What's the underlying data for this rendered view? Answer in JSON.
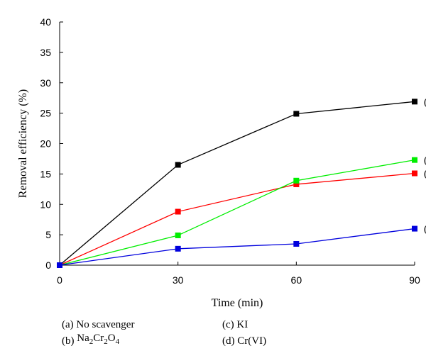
{
  "chart_data": {
    "type": "line",
    "title": "",
    "xlabel": "Time (min)",
    "ylabel": "Removal efficiency (%)",
    "x": [
      0,
      30,
      60,
      90
    ],
    "xlim": [
      0,
      90
    ],
    "ylim": [
      0,
      40
    ],
    "xticks": [
      0,
      30,
      60,
      90
    ],
    "yticks": [
      0,
      5,
      10,
      15,
      20,
      25,
      30,
      35,
      40
    ],
    "grid": false,
    "series": [
      {
        "tag": "(a)",
        "values": [
          0,
          16.5,
          24.9,
          26.9
        ],
        "color": "#000000"
      },
      {
        "tag": "(b)",
        "values": [
          0,
          8.8,
          13.3,
          15.1
        ],
        "color": "#ff0000"
      },
      {
        "tag": "(c)",
        "values": [
          0,
          4.9,
          13.9,
          17.3
        ],
        "color": "#00ee00"
      },
      {
        "tag": "(d)",
        "values": [
          0,
          2.7,
          3.5,
          6.0
        ],
        "color": "#0000dd"
      }
    ],
    "legend": {
      "placement": "bottom",
      "items": [
        {
          "prefix": "(a) No scavenger",
          "formula": null
        },
        {
          "prefix": "(b) ",
          "formula": [
            [
              "Na",
              ""
            ],
            [
              "2",
              "sub"
            ],
            [
              "Cr",
              ""
            ],
            [
              "2",
              "sub"
            ],
            [
              "O",
              ""
            ],
            [
              "4",
              "sub"
            ]
          ]
        },
        {
          "prefix": "(c) KI",
          "formula": null
        },
        {
          "prefix": "(d) Cr(VI)",
          "formula": null
        }
      ]
    }
  }
}
